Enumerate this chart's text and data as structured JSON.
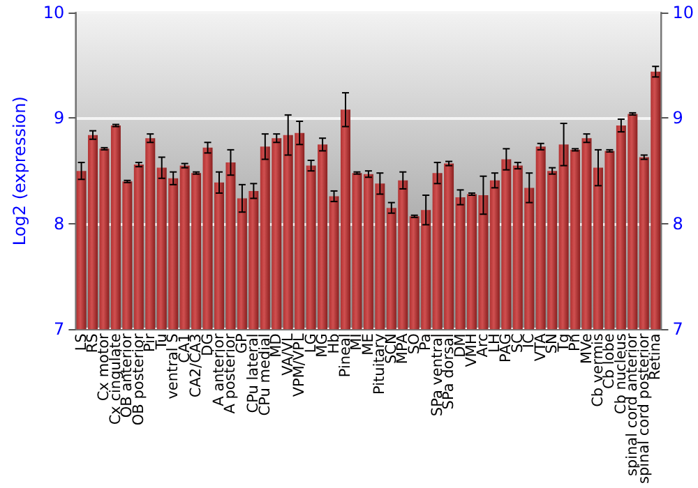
{
  "chart_data": {
    "type": "bar",
    "ylabel": "Log2 (expression)",
    "categories": [
      "LS",
      "RS",
      "Cx motor",
      "Cx cingulate",
      "OB anterior",
      "OB posterior",
      "Pir",
      "Tu",
      "ventral S",
      "CA1",
      "CA2/CA3",
      "DG",
      "A anterior",
      "A posterior",
      "GP",
      "CPu lateral",
      "CPu medial",
      "MD",
      "VA/VL",
      "VPM/VPL",
      "LG",
      "MG",
      "Hb",
      "Pineal",
      "MI",
      "ME",
      "Pituitary",
      "SCN",
      "MPA",
      "SO",
      "Pa",
      "SPa ventral",
      "SPa dorsal",
      "DM",
      "VMH",
      "Arc",
      "LH",
      "PAG",
      "SC",
      "IC",
      "VTA",
      "SN",
      "Tg",
      "Pn",
      "MVe",
      "Cb vermis",
      "Cb lobe",
      "Cb nucleus",
      "spinal cord anterior",
      "spinal cord posterior",
      "Retina"
    ],
    "values": [
      8.5,
      8.84,
      8.71,
      8.93,
      8.4,
      8.56,
      8.81,
      8.53,
      8.43,
      8.55,
      8.48,
      8.72,
      8.39,
      8.58,
      8.24,
      8.31,
      8.73,
      8.81,
      8.84,
      8.86,
      8.55,
      8.75,
      8.26,
      9.08,
      8.48,
      8.47,
      8.38,
      8.15,
      8.41,
      8.07,
      8.13,
      8.48,
      8.57,
      8.25,
      8.28,
      8.27,
      8.41,
      8.61,
      8.55,
      8.34,
      8.73,
      8.5,
      8.75,
      8.7,
      8.81,
      8.53,
      8.69,
      8.93,
      9.04,
      8.63,
      9.44
    ],
    "errors": [
      0.08,
      0.04,
      0.01,
      0.01,
      0.01,
      0.02,
      0.04,
      0.1,
      0.06,
      0.02,
      0.01,
      0.05,
      0.1,
      0.12,
      0.13,
      0.07,
      0.12,
      0.04,
      0.19,
      0.11,
      0.05,
      0.06,
      0.05,
      0.16,
      0.01,
      0.03,
      0.1,
      0.05,
      0.08,
      0.01,
      0.14,
      0.1,
      0.02,
      0.07,
      0.01,
      0.18,
      0.07,
      0.1,
      0.03,
      0.14,
      0.03,
      0.03,
      0.2,
      0.01,
      0.04,
      0.17,
      0.01,
      0.06,
      0.01,
      0.02,
      0.05
    ],
    "color": "#b23232",
    "ylim": [
      7,
      10
    ],
    "yticks": [
      7,
      8,
      9,
      10
    ],
    "y2lim": [
      7,
      10
    ],
    "y2ticks": [
      7,
      8,
      9,
      10
    ],
    "grid": "y"
  }
}
